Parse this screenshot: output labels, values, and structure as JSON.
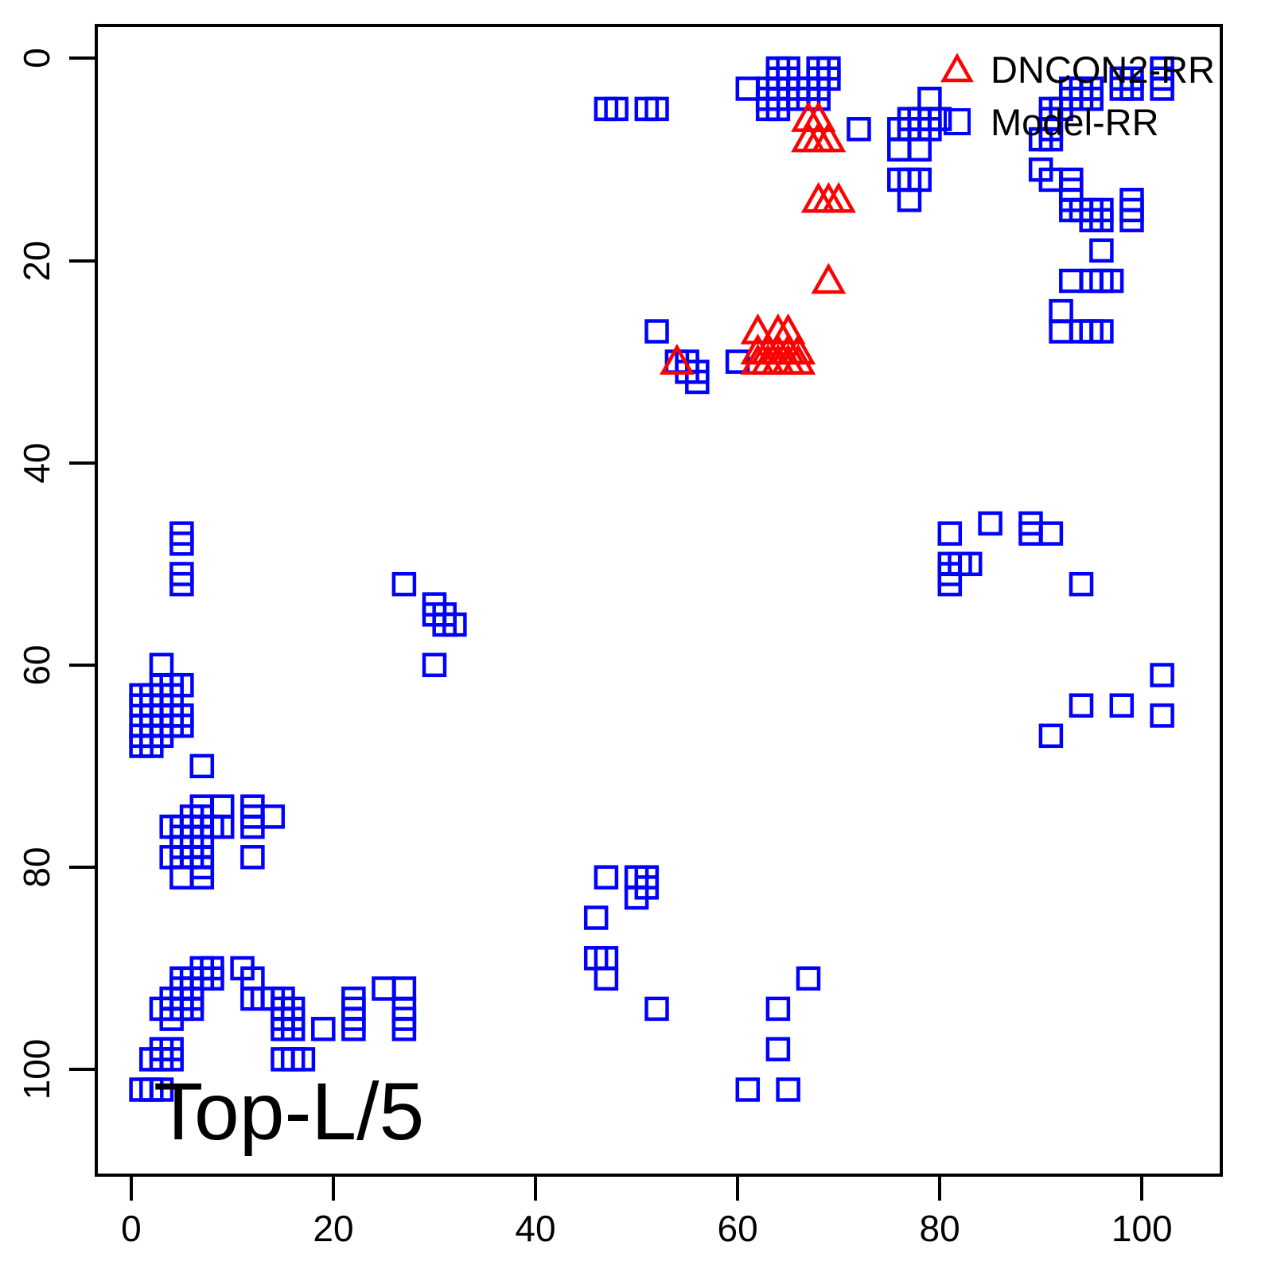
{
  "figure": {
    "background": "#FFFFFF",
    "axis_color": "#000000",
    "annotation_text": "Top-L/5"
  },
  "chart_data": {
    "type": "scatter",
    "title": "",
    "xlabel": "",
    "ylabel": "",
    "grid": false,
    "legend_position": "topright",
    "x_ticks": [
      "0",
      "20",
      "40",
      "60",
      "80",
      "100"
    ],
    "y_ticks": [
      "0",
      "20",
      "40",
      "60",
      "80",
      "100"
    ],
    "x_tick_values": [
      0,
      20,
      40,
      60,
      80,
      100
    ],
    "y_tick_values": [
      0,
      20,
      40,
      60,
      80,
      100
    ],
    "xlim": [
      -3.3,
      107.7
    ],
    "ylim": [
      -3.1,
      110.3
    ],
    "y_axis_reversed": true,
    "annotation": {
      "text": "Top-L/5",
      "x": 2.5,
      "y": 104
    },
    "series": [
      {
        "name": "DNCON2-RR",
        "marker": "triangle",
        "color": "#FF0000",
        "points": [
          [
            67,
            6
          ],
          [
            68,
            6
          ],
          [
            67,
            8
          ],
          [
            68,
            8
          ],
          [
            69,
            8
          ],
          [
            68,
            14
          ],
          [
            69,
            14
          ],
          [
            70,
            14
          ],
          [
            69,
            22
          ],
          [
            54,
            30
          ],
          [
            62,
            27
          ],
          [
            64,
            27
          ],
          [
            65,
            27
          ],
          [
            62,
            29
          ],
          [
            63,
            29
          ],
          [
            64,
            29
          ],
          [
            65,
            29
          ],
          [
            66,
            29
          ],
          [
            62,
            30
          ],
          [
            63,
            30
          ],
          [
            64,
            30
          ],
          [
            65,
            30
          ],
          [
            66,
            30
          ]
        ]
      },
      {
        "name": "Model-RR",
        "marker": "square",
        "color": "#0000FF",
        "points": [
          [
            47,
            5
          ],
          [
            48,
            5
          ],
          [
            51,
            5
          ],
          [
            52,
            5
          ],
          [
            61,
            3
          ],
          [
            64,
            1
          ],
          [
            65,
            1
          ],
          [
            68,
            1
          ],
          [
            69,
            1
          ],
          [
            64,
            2
          ],
          [
            65,
            2
          ],
          [
            68,
            2
          ],
          [
            69,
            2
          ],
          [
            63,
            3
          ],
          [
            64,
            3
          ],
          [
            66,
            3
          ],
          [
            67,
            3
          ],
          [
            68,
            3
          ],
          [
            63,
            4
          ],
          [
            64,
            4
          ],
          [
            66,
            4
          ],
          [
            67,
            4
          ],
          [
            68,
            4
          ],
          [
            63,
            5
          ],
          [
            64,
            5
          ],
          [
            72,
            7
          ],
          [
            79,
            4
          ],
          [
            77,
            6
          ],
          [
            78,
            6
          ],
          [
            79,
            6
          ],
          [
            80,
            6
          ],
          [
            76,
            7
          ],
          [
            77,
            7
          ],
          [
            78,
            7
          ],
          [
            79,
            7
          ],
          [
            76,
            9
          ],
          [
            78,
            9
          ],
          [
            76,
            12
          ],
          [
            77,
            12
          ],
          [
            78,
            12
          ],
          [
            77,
            14
          ],
          [
            93,
            3
          ],
          [
            94,
            3
          ],
          [
            95,
            3
          ],
          [
            93,
            4
          ],
          [
            94,
            4
          ],
          [
            95,
            4
          ],
          [
            91,
            5
          ],
          [
            92,
            5
          ],
          [
            98,
            2
          ],
          [
            99,
            2
          ],
          [
            98,
            3
          ],
          [
            99,
            3
          ],
          [
            102,
            1
          ],
          [
            102,
            2
          ],
          [
            102,
            3
          ],
          [
            91,
            6
          ],
          [
            91,
            7
          ],
          [
            90,
            8
          ],
          [
            91,
            8
          ],
          [
            90,
            11
          ],
          [
            91,
            12
          ],
          [
            93,
            12
          ],
          [
            93,
            13
          ],
          [
            93,
            14
          ],
          [
            93,
            15
          ],
          [
            94,
            15
          ],
          [
            95,
            15
          ],
          [
            96,
            15
          ],
          [
            95,
            16
          ],
          [
            96,
            16
          ],
          [
            99,
            14
          ],
          [
            99,
            15
          ],
          [
            99,
            16
          ],
          [
            96,
            19
          ],
          [
            93,
            22
          ],
          [
            95,
            22
          ],
          [
            96,
            22
          ],
          [
            97,
            22
          ],
          [
            92,
            25
          ],
          [
            92,
            27
          ],
          [
            94,
            27
          ],
          [
            95,
            27
          ],
          [
            96,
            27
          ],
          [
            52,
            27
          ],
          [
            54,
            30
          ],
          [
            55,
            30
          ],
          [
            55,
            31
          ],
          [
            56,
            31
          ],
          [
            56,
            32
          ],
          [
            60,
            30
          ],
          [
            5,
            47
          ],
          [
            5,
            48
          ],
          [
            5,
            51
          ],
          [
            5,
            52
          ],
          [
            3,
            60
          ],
          [
            27,
            52
          ],
          [
            30,
            54
          ],
          [
            30,
            55
          ],
          [
            31,
            55
          ],
          [
            31,
            56
          ],
          [
            32,
            56
          ],
          [
            30,
            60
          ],
          [
            3,
            62
          ],
          [
            4,
            62
          ],
          [
            5,
            62
          ],
          [
            1,
            63
          ],
          [
            2,
            63
          ],
          [
            3,
            63
          ],
          [
            4,
            63
          ],
          [
            1,
            64
          ],
          [
            2,
            64
          ],
          [
            3,
            64
          ],
          [
            2,
            65
          ],
          [
            3,
            65
          ],
          [
            4,
            65
          ],
          [
            5,
            65
          ],
          [
            1,
            66
          ],
          [
            2,
            66
          ],
          [
            3,
            66
          ],
          [
            4,
            66
          ],
          [
            5,
            66
          ],
          [
            1,
            67
          ],
          [
            2,
            67
          ],
          [
            3,
            67
          ],
          [
            1,
            68
          ],
          [
            2,
            68
          ],
          [
            7,
            70
          ],
          [
            7,
            74
          ],
          [
            9,
            74
          ],
          [
            6,
            75
          ],
          [
            7,
            75
          ],
          [
            4,
            76
          ],
          [
            5,
            76
          ],
          [
            6,
            76
          ],
          [
            7,
            76
          ],
          [
            8,
            76
          ],
          [
            9,
            76
          ],
          [
            5,
            77
          ],
          [
            7,
            77
          ],
          [
            5,
            78
          ],
          [
            6,
            78
          ],
          [
            7,
            78
          ],
          [
            4,
            79
          ],
          [
            5,
            79
          ],
          [
            6,
            79
          ],
          [
            7,
            79
          ],
          [
            7,
            80
          ],
          [
            5,
            81
          ],
          [
            7,
            81
          ],
          [
            12,
            74
          ],
          [
            12,
            75
          ],
          [
            12,
            76
          ],
          [
            14,
            75
          ],
          [
            12,
            79
          ],
          [
            7,
            90
          ],
          [
            8,
            90
          ],
          [
            7,
            91
          ],
          [
            8,
            91
          ],
          [
            11,
            90
          ],
          [
            12,
            91
          ],
          [
            5,
            91
          ],
          [
            6,
            91
          ],
          [
            5,
            92
          ],
          [
            6,
            92
          ],
          [
            4,
            93
          ],
          [
            5,
            93
          ],
          [
            6,
            93
          ],
          [
            3,
            94
          ],
          [
            4,
            94
          ],
          [
            5,
            94
          ],
          [
            6,
            94
          ],
          [
            4,
            95
          ],
          [
            12,
            93
          ],
          [
            13,
            93
          ],
          [
            14,
            93
          ],
          [
            15,
            93
          ],
          [
            15,
            94
          ],
          [
            16,
            94
          ],
          [
            15,
            95
          ],
          [
            16,
            95
          ],
          [
            15,
            96
          ],
          [
            16,
            96
          ],
          [
            19,
            96
          ],
          [
            22,
            93
          ],
          [
            22,
            94
          ],
          [
            22,
            95
          ],
          [
            22,
            96
          ],
          [
            25,
            92
          ],
          [
            27,
            92
          ],
          [
            27,
            94
          ],
          [
            27,
            95
          ],
          [
            27,
            96
          ],
          [
            3,
            98
          ],
          [
            4,
            98
          ],
          [
            2,
            99
          ],
          [
            3,
            99
          ],
          [
            4,
            99
          ],
          [
            15,
            99
          ],
          [
            16,
            99
          ],
          [
            17,
            99
          ],
          [
            1,
            102
          ],
          [
            2,
            102
          ],
          [
            3,
            102
          ],
          [
            47,
            81
          ],
          [
            50,
            81
          ],
          [
            51,
            81
          ],
          [
            51,
            82
          ],
          [
            50,
            83
          ],
          [
            46,
            85
          ],
          [
            46,
            89
          ],
          [
            47,
            89
          ],
          [
            47,
            91
          ],
          [
            52,
            94
          ],
          [
            67,
            91
          ],
          [
            64,
            94
          ],
          [
            64,
            98
          ],
          [
            61,
            102
          ],
          [
            65,
            102
          ],
          [
            81,
            47
          ],
          [
            85,
            46
          ],
          [
            89,
            46
          ],
          [
            89,
            47
          ],
          [
            91,
            47
          ],
          [
            81,
            50
          ],
          [
            82,
            50
          ],
          [
            83,
            50
          ],
          [
            81,
            51
          ],
          [
            81,
            52
          ],
          [
            94,
            52
          ],
          [
            102,
            61
          ],
          [
            94,
            64
          ],
          [
            98,
            64
          ],
          [
            102,
            65
          ],
          [
            91,
            67
          ]
        ]
      }
    ]
  }
}
